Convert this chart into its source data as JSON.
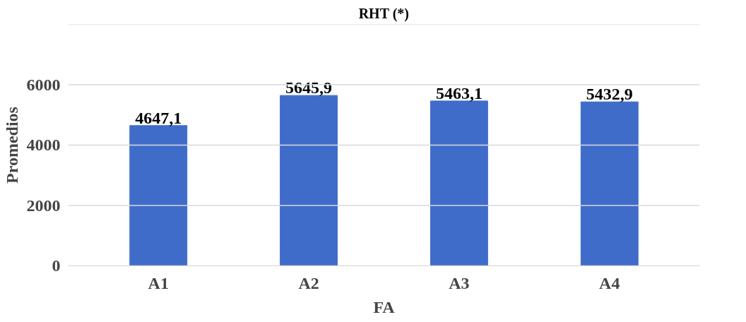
{
  "chart_data": {
    "type": "bar",
    "title": "RHT (*)",
    "xlabel": "FA",
    "ylabel": "Promedios",
    "categories": [
      "A1",
      "A2",
      "A3",
      "A4"
    ],
    "values": [
      4647.1,
      5645.9,
      5463.1,
      5432.9
    ],
    "value_labels": [
      "4647,1",
      "5645,9",
      "5463,1",
      "5432,9"
    ],
    "color": "#3f6cc9",
    "ylim": [
      0,
      8000
    ],
    "yticks": [
      0,
      2000,
      4000,
      6000,
      {
        "value": 8000,
        "label": null
      }
    ],
    "grid": "y"
  }
}
